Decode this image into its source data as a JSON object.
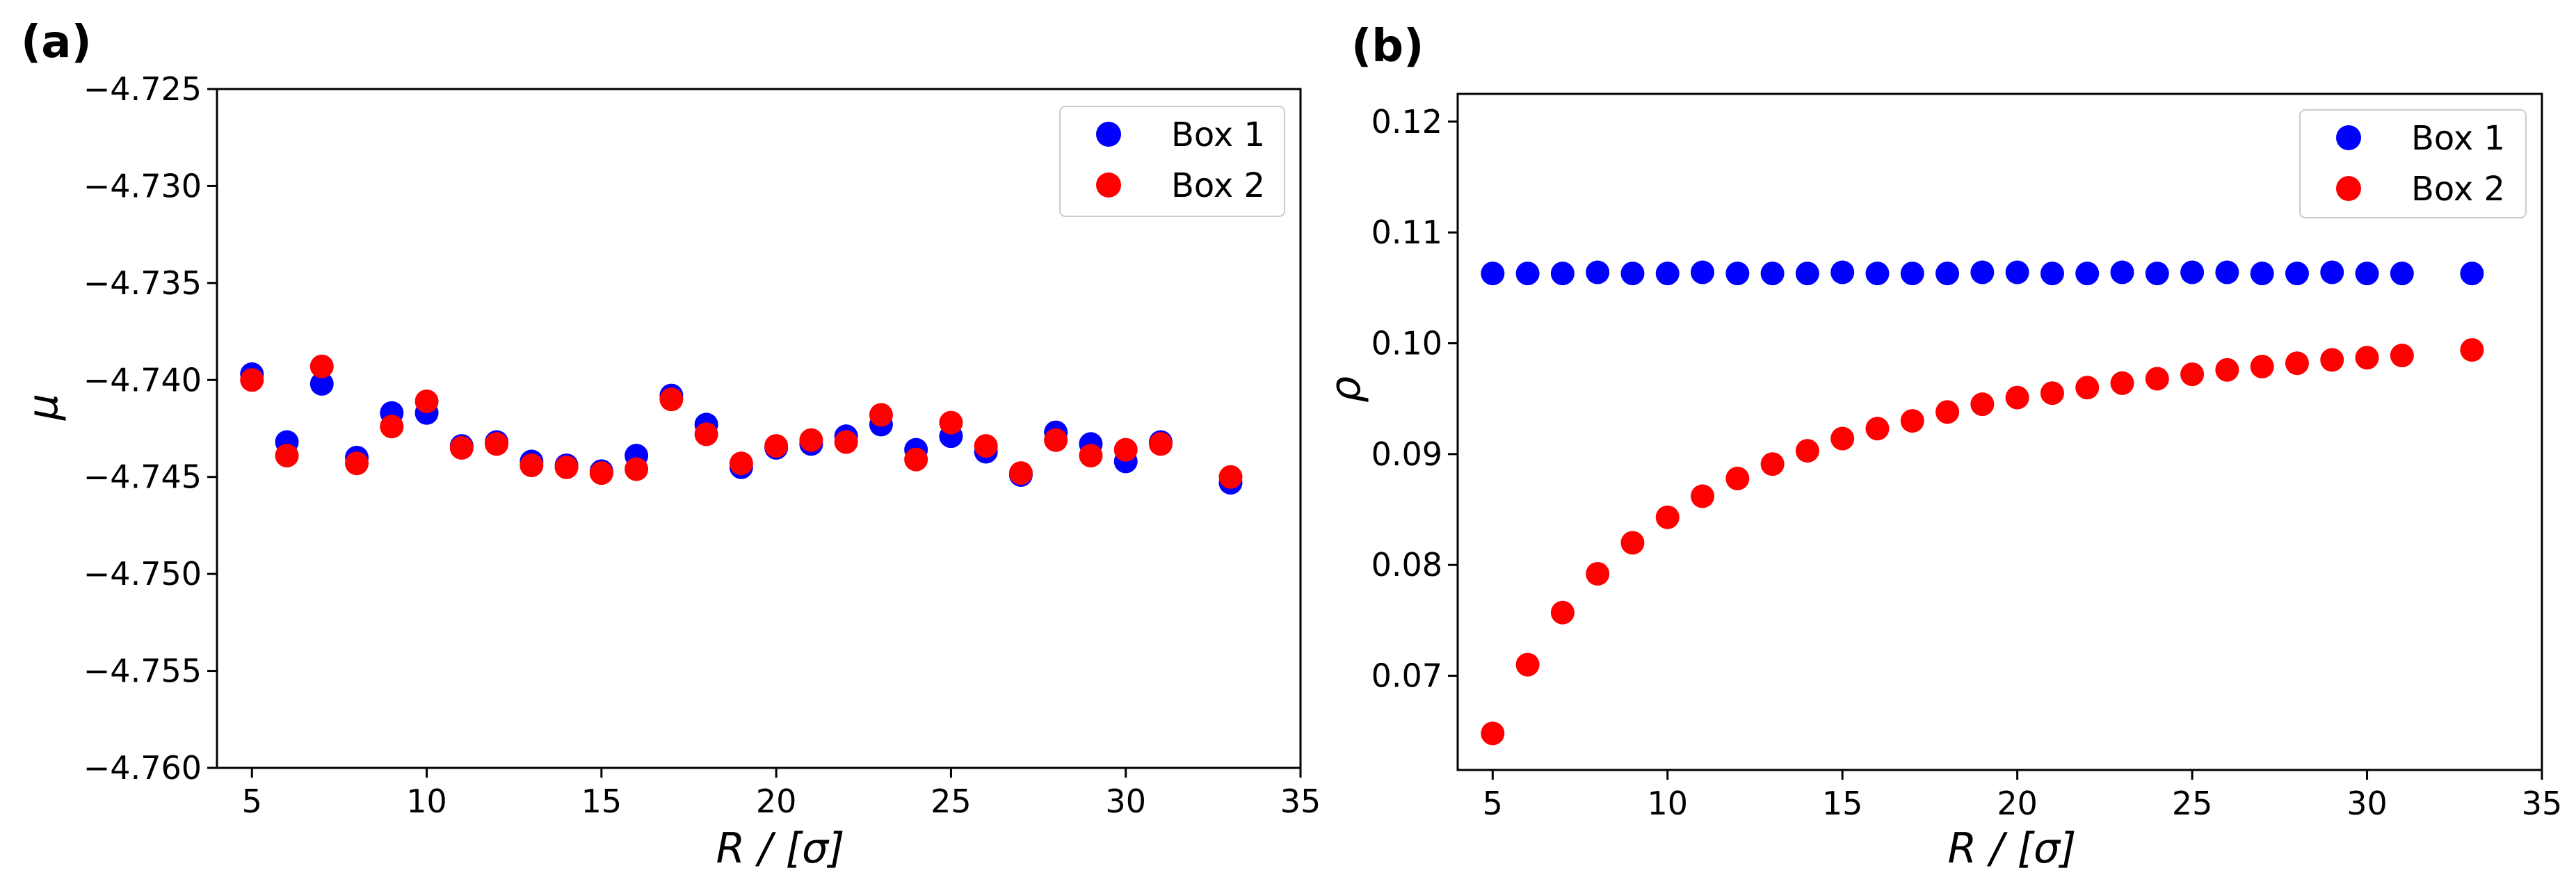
{
  "figure": {
    "panel_labels": [
      "(a)",
      "(b)"
    ]
  },
  "chart_data": [
    {
      "type": "scatter",
      "panel": "(a)",
      "xlabel": "R / [σ]",
      "ylabel": "μ",
      "xlim": [
        4,
        35
      ],
      "ylim": [
        -4.76,
        -4.725
      ],
      "xticks": [
        5,
        10,
        15,
        20,
        25,
        30,
        35
      ],
      "xtick_labels": [
        "5",
        "10",
        "15",
        "20",
        "25",
        "30",
        "35"
      ],
      "yticks": [
        -4.725,
        -4.73,
        -4.735,
        -4.74,
        -4.745,
        -4.75,
        -4.755,
        -4.76
      ],
      "ytick_labels": [
        "−4.725",
        "−4.730",
        "−4.735",
        "−4.740",
        "−4.745",
        "−4.750",
        "−4.755",
        "−4.760"
      ],
      "legend_position": "upper-right",
      "series": [
        {
          "name": "Box 1",
          "color": "#0000ff",
          "x": [
            5,
            6,
            7,
            8,
            9,
            10,
            11,
            12,
            13,
            14,
            15,
            16,
            17,
            18,
            19,
            20,
            21,
            22,
            23,
            24,
            25,
            26,
            27,
            28,
            29,
            30,
            31,
            33
          ],
          "y": [
            -4.7397,
            -4.7432,
            -4.7402,
            -4.744,
            -4.7417,
            -4.7417,
            -4.7434,
            -4.7432,
            -4.7442,
            -4.7444,
            -4.7447,
            -4.7439,
            -4.7408,
            -4.7423,
            -4.7445,
            -4.7435,
            -4.7433,
            -4.7429,
            -4.7423,
            -4.7436,
            -4.7429,
            -4.7437,
            -4.7449,
            -4.7427,
            -4.7433,
            -4.7442,
            -4.7432,
            -4.7453
          ]
        },
        {
          "name": "Box 2",
          "color": "#ff0000",
          "x": [
            5,
            6,
            7,
            8,
            9,
            10,
            11,
            12,
            13,
            14,
            15,
            16,
            17,
            18,
            19,
            20,
            21,
            22,
            23,
            24,
            25,
            26,
            27,
            28,
            29,
            30,
            31,
            33
          ],
          "y": [
            -4.74,
            -4.7439,
            -4.7393,
            -4.7443,
            -4.7424,
            -4.7411,
            -4.7435,
            -4.7433,
            -4.7444,
            -4.7445,
            -4.7448,
            -4.7446,
            -4.741,
            -4.7428,
            -4.7443,
            -4.7434,
            -4.7431,
            -4.7432,
            -4.7418,
            -4.7441,
            -4.7422,
            -4.7434,
            -4.7448,
            -4.7431,
            -4.7439,
            -4.7436,
            -4.7433,
            -4.745
          ]
        }
      ]
    },
    {
      "type": "scatter",
      "panel": "(b)",
      "xlabel": "R / [σ]",
      "ylabel": "ρ",
      "xlim": [
        4,
        35
      ],
      "ylim": [
        0.0615,
        0.1225
      ],
      "xticks": [
        5,
        10,
        15,
        20,
        25,
        30,
        35
      ],
      "xtick_labels": [
        "5",
        "10",
        "15",
        "20",
        "25",
        "30",
        "35"
      ],
      "yticks": [
        0.07,
        0.08,
        0.09,
        0.1,
        0.11,
        0.12
      ],
      "ytick_labels": [
        "0.07",
        "0.08",
        "0.09",
        "0.10",
        "0.11",
        "0.12"
      ],
      "legend_position": "upper-right",
      "series": [
        {
          "name": "Box 1",
          "color": "#0000ff",
          "x": [
            5,
            6,
            7,
            8,
            9,
            10,
            11,
            12,
            13,
            14,
            15,
            16,
            17,
            18,
            19,
            20,
            21,
            22,
            23,
            24,
            25,
            26,
            27,
            28,
            29,
            30,
            31,
            33
          ],
          "y": [
            0.1063,
            0.1063,
            0.1063,
            0.1064,
            0.1063,
            0.1063,
            0.1064,
            0.1063,
            0.1063,
            0.1063,
            0.1064,
            0.1063,
            0.1063,
            0.1063,
            0.1064,
            0.1064,
            0.1063,
            0.1063,
            0.1064,
            0.1063,
            0.1064,
            0.1064,
            0.1063,
            0.1063,
            0.1064,
            0.1063,
            0.1063,
            0.1063
          ]
        },
        {
          "name": "Box 2",
          "color": "#ff0000",
          "x": [
            5,
            6,
            7,
            8,
            9,
            10,
            11,
            12,
            13,
            14,
            15,
            16,
            17,
            18,
            19,
            20,
            21,
            22,
            23,
            24,
            25,
            26,
            27,
            28,
            29,
            30,
            31,
            33
          ],
          "y": [
            0.0648,
            0.071,
            0.0757,
            0.0792,
            0.082,
            0.0843,
            0.0862,
            0.0878,
            0.0891,
            0.0903,
            0.0914,
            0.0923,
            0.093,
            0.0938,
            0.0945,
            0.0951,
            0.0955,
            0.096,
            0.0964,
            0.0968,
            0.0972,
            0.0976,
            0.0979,
            0.0982,
            0.0985,
            0.0987,
            0.0989,
            0.0994
          ]
        }
      ]
    }
  ]
}
